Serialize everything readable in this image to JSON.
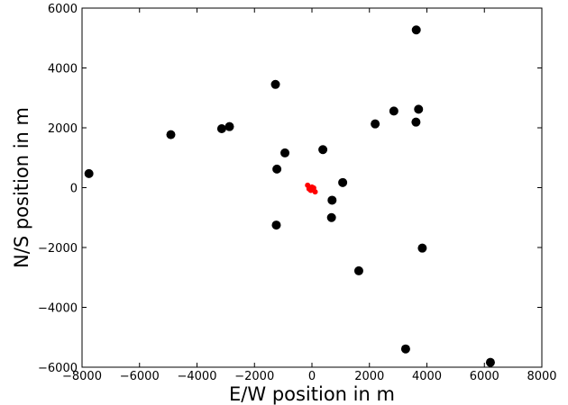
{
  "chart_data": {
    "type": "scatter",
    "title": "",
    "xlabel": "E/W position in m",
    "ylabel": "N/S position in m",
    "xlim": [
      -8000,
      8000
    ],
    "ylim": [
      -6000,
      6000
    ],
    "x_ticks": [
      -8000,
      -6000,
      -4000,
      -2000,
      0,
      2000,
      4000,
      6000,
      8000
    ],
    "y_ticks": [
      -6000,
      -4000,
      -2000,
      0,
      2000,
      4000,
      6000
    ],
    "x_tick_labels": [
      "−8000",
      "−6000",
      "−4000",
      "−2000",
      "0",
      "2000",
      "4000",
      "6000",
      "8000"
    ],
    "y_tick_labels": [
      "−6000",
      "−4000",
      "−2000",
      "0",
      "2000",
      "4000",
      "6000"
    ],
    "grid": false,
    "series": [
      {
        "color": "#000000",
        "marker_size": "large",
        "points": [
          [
            3630,
            5270
          ],
          [
            -1270,
            3450
          ],
          [
            2850,
            2560
          ],
          [
            3710,
            2620
          ],
          [
            3620,
            2190
          ],
          [
            2200,
            2130
          ],
          [
            -3140,
            1970
          ],
          [
            -2870,
            2040
          ],
          [
            -4910,
            1770
          ],
          [
            -940,
            1160
          ],
          [
            380,
            1270
          ],
          [
            -1220,
            620
          ],
          [
            -7760,
            470
          ],
          [
            1070,
            170
          ],
          [
            700,
            -420
          ],
          [
            680,
            -1000
          ],
          [
            -1240,
            -1250
          ],
          [
            3840,
            -2020
          ],
          [
            1630,
            -2780
          ],
          [
            3260,
            -5390
          ],
          [
            6210,
            -5840
          ]
        ]
      },
      {
        "color": "#ff0000",
        "marker_size": "small",
        "points": [
          [
            -150,
            80
          ],
          [
            -100,
            -40
          ],
          [
            -40,
            -90
          ],
          [
            0,
            20
          ],
          [
            60,
            -10
          ],
          [
            110,
            -140
          ]
        ]
      }
    ]
  }
}
